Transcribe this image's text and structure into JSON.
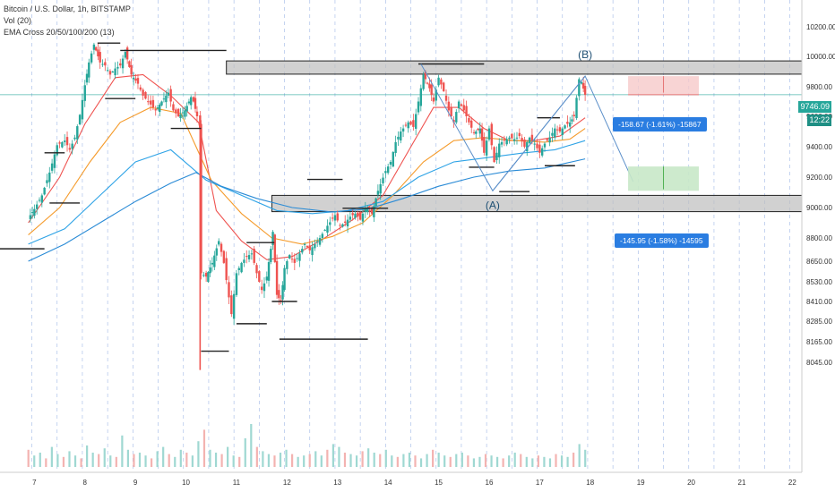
{
  "legend": {
    "title": "Bitcoin / U.S. Dollar, 1h, BITSTAMP",
    "vol": "Vol (20)",
    "ema": "EMA Cross 20/50/100/200 (13)"
  },
  "price_tag": "9746.09",
  "timer_tag": "12:22",
  "short_target": "-158.67 (-1.61%) -15867",
  "long_target": "-145.95 (-1.58%) -14595",
  "wave_labels": {
    "a": "(A)",
    "b": "(B)"
  },
  "colors": {
    "up": "#26a69a",
    "down": "#ef5350",
    "ema20": "#ef5350",
    "ema50": "#f59b2b",
    "ema100": "#2ea3e6",
    "ema200": "#2a8bd6",
    "zone": "#bdbdbd",
    "badge": "#2a7de1"
  },
  "chart_data": {
    "type": "candlestick",
    "x_ticks": [
      "7",
      "8",
      "9",
      "10",
      "11",
      "12",
      "13",
      "14",
      "15",
      "16",
      "17",
      "18",
      "19",
      "20",
      "21",
      "22"
    ],
    "y_ticks": [
      10200,
      10000,
      9800,
      9600,
      9400,
      9200,
      9000,
      8800,
      8650,
      8530,
      8410,
      8285,
      8165,
      8045
    ],
    "close_path": [
      [
        6.78,
        8930
      ],
      [
        6.9,
        8990
      ],
      [
        7.05,
        9080
      ],
      [
        7.2,
        9230
      ],
      [
        7.35,
        9410
      ],
      [
        7.5,
        9440
      ],
      [
        7.6,
        9380
      ],
      [
        7.7,
        9460
      ],
      [
        7.8,
        9610
      ],
      [
        7.9,
        9810
      ],
      [
        7.98,
        9960
      ],
      [
        8.08,
        10080
      ],
      [
        8.2,
        9960
      ],
      [
        8.3,
        9940
      ],
      [
        8.4,
        9880
      ],
      [
        8.5,
        9920
      ],
      [
        8.6,
        9940
      ],
      [
        8.7,
        10030
      ],
      [
        8.82,
        9880
      ],
      [
        8.95,
        9820
      ],
      [
        9.05,
        9740
      ],
      [
        9.2,
        9680
      ],
      [
        9.3,
        9640
      ],
      [
        9.42,
        9700
      ],
      [
        9.55,
        9760
      ],
      [
        9.65,
        9640
      ],
      [
        9.75,
        9600
      ],
      [
        9.88,
        9640
      ],
      [
        10.0,
        9730
      ],
      [
        10.05,
        9700
      ],
      [
        10.12,
        9600
      ],
      [
        10.18,
        9520
      ],
      [
        10.2,
        8580
      ],
      [
        10.3,
        8560
      ],
      [
        10.42,
        8640
      ],
      [
        10.55,
        8780
      ],
      [
        10.65,
        8640
      ],
      [
        10.7,
        8540
      ],
      [
        10.8,
        8330
      ],
      [
        10.9,
        8580
      ],
      [
        11.0,
        8640
      ],
      [
        11.1,
        8680
      ],
      [
        11.2,
        8700
      ],
      [
        11.3,
        8580
      ],
      [
        11.4,
        8480
      ],
      [
        11.5,
        8560
      ],
      [
        11.58,
        8730
      ],
      [
        11.62,
        8840
      ],
      [
        11.7,
        8450
      ],
      [
        11.78,
        8410
      ],
      [
        11.85,
        8610
      ],
      [
        11.95,
        8690
      ],
      [
        12.05,
        8640
      ],
      [
        12.15,
        8700
      ],
      [
        12.25,
        8760
      ],
      [
        12.35,
        8720
      ],
      [
        12.45,
        8760
      ],
      [
        12.55,
        8800
      ],
      [
        12.7,
        8880
      ],
      [
        12.85,
        8950
      ],
      [
        12.95,
        8880
      ],
      [
        13.05,
        8900
      ],
      [
        13.15,
        8940
      ],
      [
        13.25,
        8960
      ],
      [
        13.35,
        8920
      ],
      [
        13.45,
        9000
      ],
      [
        13.58,
        8960
      ],
      [
        13.7,
        9110
      ],
      [
        13.85,
        9240
      ],
      [
        13.95,
        9300
      ],
      [
        14.05,
        9430
      ],
      [
        14.15,
        9500
      ],
      [
        14.3,
        9560
      ],
      [
        14.4,
        9530
      ],
      [
        14.5,
        9700
      ],
      [
        14.6,
        9880
      ],
      [
        14.72,
        9790
      ],
      [
        14.8,
        9700
      ],
      [
        14.9,
        9860
      ],
      [
        15.0,
        9770
      ],
      [
        15.1,
        9640
      ],
      [
        15.2,
        9560
      ],
      [
        15.3,
        9700
      ],
      [
        15.4,
        9640
      ],
      [
        15.5,
        9560
      ],
      [
        15.6,
        9490
      ],
      [
        15.72,
        9520
      ],
      [
        15.8,
        9360
      ],
      [
        15.9,
        9520
      ],
      [
        16.0,
        9300
      ],
      [
        16.1,
        9420
      ],
      [
        16.2,
        9440
      ],
      [
        16.3,
        9460
      ],
      [
        16.4,
        9450
      ],
      [
        16.5,
        9470
      ],
      [
        16.6,
        9400
      ],
      [
        16.7,
        9460
      ],
      [
        16.8,
        9420
      ],
      [
        16.9,
        9360
      ],
      [
        17.0,
        9420
      ],
      [
        17.1,
        9460
      ],
      [
        17.2,
        9520
      ],
      [
        17.3,
        9500
      ],
      [
        17.4,
        9540
      ],
      [
        17.5,
        9560
      ],
      [
        17.58,
        9600
      ],
      [
        17.68,
        9850
      ],
      [
        17.73,
        9830
      ],
      [
        17.8,
        9746
      ]
    ],
    "ema20": [
      [
        6.78,
        8900
      ],
      [
        7.4,
        9200
      ],
      [
        7.9,
        9550
      ],
      [
        8.5,
        9860
      ],
      [
        9.05,
        9880
      ],
      [
        9.6,
        9740
      ],
      [
        10.15,
        9560
      ],
      [
        10.5,
        8980
      ],
      [
        11.0,
        8780
      ],
      [
        11.5,
        8660
      ],
      [
        12.0,
        8680
      ],
      [
        12.6,
        8790
      ],
      [
        13.2,
        8920
      ],
      [
        13.8,
        9080
      ],
      [
        14.3,
        9370
      ],
      [
        14.8,
        9660
      ],
      [
        15.3,
        9660
      ],
      [
        15.8,
        9520
      ],
      [
        16.3,
        9440
      ],
      [
        16.8,
        9440
      ],
      [
        17.3,
        9470
      ],
      [
        17.8,
        9590
      ]
    ],
    "ema50": [
      [
        6.78,
        8820
      ],
      [
        7.4,
        9000
      ],
      [
        8.0,
        9300
      ],
      [
        8.6,
        9560
      ],
      [
        9.2,
        9660
      ],
      [
        9.8,
        9620
      ],
      [
        10.4,
        9180
      ],
      [
        11.0,
        8960
      ],
      [
        11.6,
        8800
      ],
      [
        12.2,
        8760
      ],
      [
        12.8,
        8810
      ],
      [
        13.4,
        8900
      ],
      [
        14.0,
        9080
      ],
      [
        14.6,
        9300
      ],
      [
        15.2,
        9440
      ],
      [
        15.8,
        9460
      ],
      [
        16.4,
        9440
      ],
      [
        17.0,
        9430
      ],
      [
        17.5,
        9450
      ],
      [
        17.8,
        9520
      ]
    ],
    "ema100": [
      [
        6.78,
        8760
      ],
      [
        7.5,
        8860
      ],
      [
        8.2,
        9080
      ],
      [
        8.9,
        9300
      ],
      [
        9.6,
        9380
      ],
      [
        10.3,
        9180
      ],
      [
        11.0,
        9080
      ],
      [
        11.7,
        8980
      ],
      [
        12.4,
        8960
      ],
      [
        13.1,
        8980
      ],
      [
        13.8,
        9040
      ],
      [
        14.5,
        9200
      ],
      [
        15.2,
        9300
      ],
      [
        15.9,
        9330
      ],
      [
        16.6,
        9360
      ],
      [
        17.2,
        9380
      ],
      [
        17.8,
        9440
      ]
    ],
    "ema200": [
      [
        6.78,
        8650
      ],
      [
        7.5,
        8760
      ],
      [
        8.2,
        8900
      ],
      [
        8.9,
        9040
      ],
      [
        9.6,
        9160
      ],
      [
        10.1,
        9230
      ],
      [
        10.6,
        9140
      ],
      [
        11.3,
        9060
      ],
      [
        12.0,
        9000
      ],
      [
        12.8,
        8970
      ],
      [
        13.5,
        8990
      ],
      [
        14.2,
        9060
      ],
      [
        14.9,
        9140
      ],
      [
        15.6,
        9200
      ],
      [
        16.3,
        9240
      ],
      [
        17.0,
        9260
      ],
      [
        17.8,
        9320
      ]
    ],
    "zones": [
      {
        "from_day": 10.7,
        "to_day": 22.35,
        "low": 9930,
        "high": 9970
      },
      {
        "from_day": 11.6,
        "to_day": 22.35,
        "low": 9020,
        "high": 9080
      }
    ],
    "volume_bars": [
      12,
      8,
      10,
      6,
      14,
      9,
      7,
      11,
      8,
      6,
      15,
      10,
      9,
      13,
      8,
      7,
      22,
      12,
      9,
      10,
      8,
      6,
      11,
      14,
      9,
      7,
      12,
      10,
      8,
      18,
      26,
      12,
      10,
      9,
      14,
      8,
      7,
      20,
      30,
      14,
      11,
      9,
      8,
      10,
      12,
      9,
      7,
      8,
      9,
      11,
      8,
      12,
      16,
      14,
      10,
      9,
      8,
      11,
      13,
      10,
      9,
      12,
      8,
      7,
      9,
      10,
      8,
      6,
      9,
      12,
      10,
      8,
      7,
      9,
      10,
      8,
      6,
      7,
      9,
      8,
      7,
      6,
      8,
      10,
      9,
      7,
      6,
      8,
      7,
      6,
      9,
      8,
      7,
      10,
      16,
      12
    ]
  }
}
